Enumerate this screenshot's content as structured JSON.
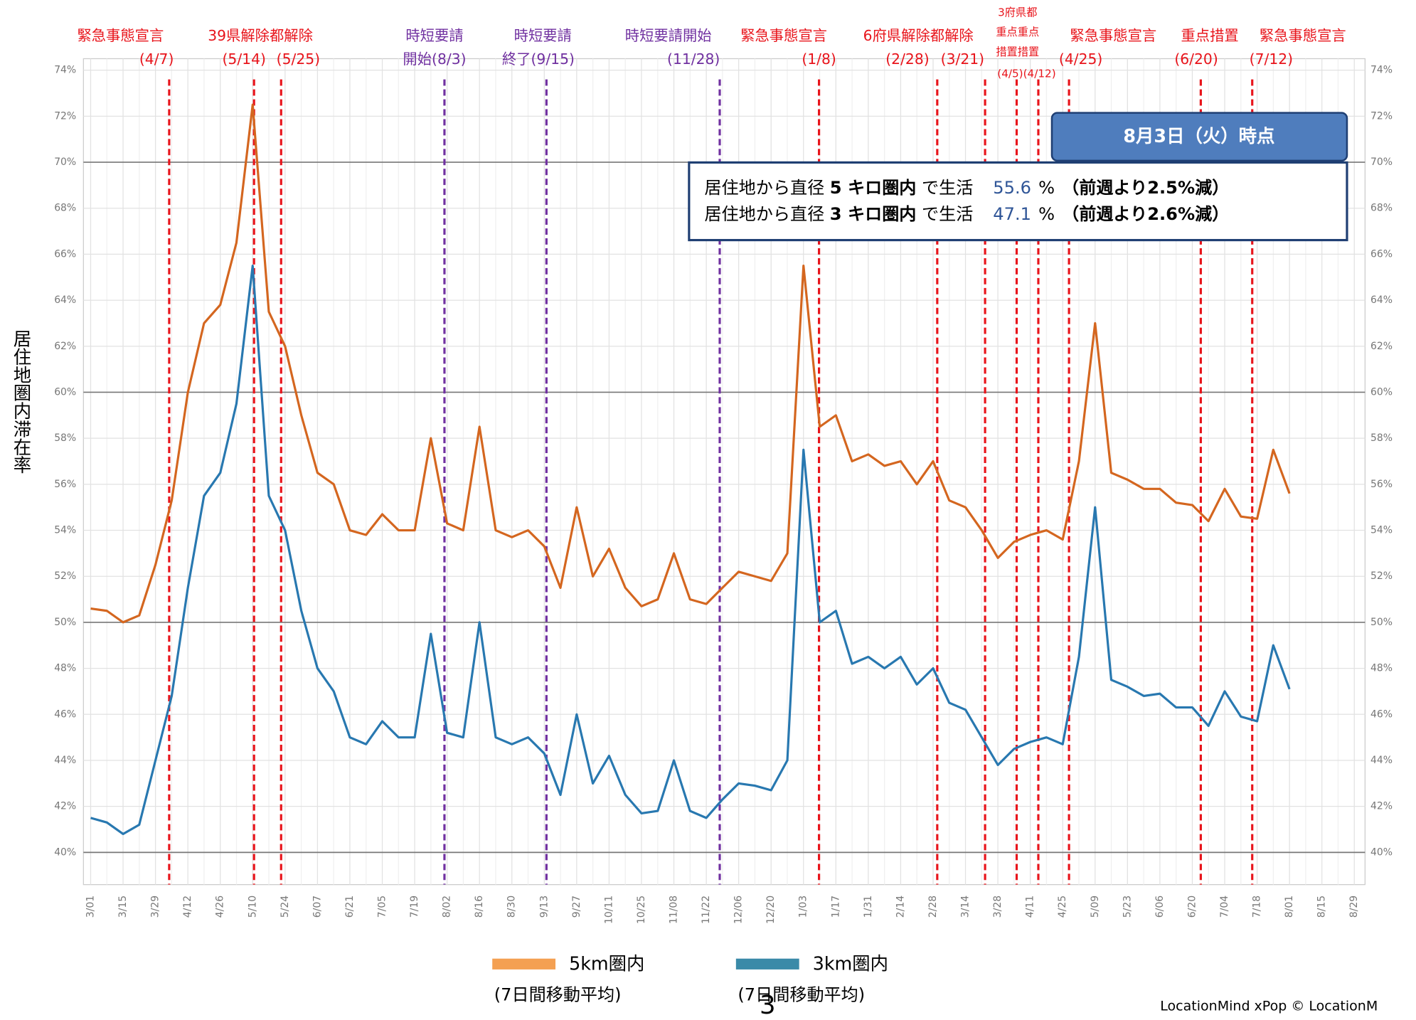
{
  "chart_data": {
    "type": "line",
    "y_axis_label": "居住地圏内滞在率",
    "categories": [
      "3/01",
      null,
      "3/15",
      null,
      "3/29",
      null,
      "4/12",
      null,
      "4/26",
      null,
      "5/10",
      null,
      "5/24",
      null,
      "6/07",
      null,
      "6/21",
      null,
      "7/05",
      null,
      "7/19",
      null,
      "8/02",
      null,
      "8/16",
      null,
      "8/30",
      null,
      "9/13",
      null,
      "9/27",
      null,
      "10/11",
      null,
      "10/25",
      null,
      "11/08",
      null,
      "11/22",
      null,
      "12/06",
      null,
      "12/20",
      null,
      "1/03",
      null,
      "1/17",
      null,
      "1/31",
      null,
      "2/14",
      null,
      "2/28",
      null,
      "3/14",
      null,
      "3/28",
      null,
      "4/11",
      null,
      "4/25",
      null,
      "5/09",
      null,
      "5/23",
      null,
      "6/06",
      null,
      "6/20",
      null,
      "7/04",
      null,
      "7/18",
      null,
      "8/01",
      null,
      "8/15",
      null,
      "8/29"
    ],
    "series": [
      {
        "name": "5km圏内",
        "sublabel": "(7日間移動平均)",
        "color": "#d4661f",
        "legend_color": "#f4a052",
        "values": [
          50.6,
          50.5,
          50.0,
          50.3,
          52.5,
          55.3,
          60.0,
          63.0,
          63.8,
          66.5,
          72.5,
          63.5,
          62.0,
          59.0,
          56.5,
          56.0,
          54.0,
          53.8,
          54.7,
          54.0,
          54.0,
          58.0,
          54.3,
          54.0,
          58.5,
          54.0,
          53.7,
          54.0,
          53.3,
          51.5,
          55.0,
          52.0,
          53.2,
          51.5,
          50.7,
          51.0,
          53.0,
          51.0,
          50.8,
          51.5,
          52.2,
          52.0,
          51.8,
          53.0,
          65.5,
          58.5,
          59.0,
          57.0,
          57.3,
          56.8,
          57.0,
          56.0,
          57.0,
          55.3,
          55.0,
          54.0,
          52.8,
          53.5,
          53.8,
          54.0,
          53.6,
          57.0,
          63.0,
          56.5,
          56.2,
          55.8,
          55.8,
          55.2,
          55.1,
          54.4,
          55.8,
          54.6,
          54.5,
          57.5,
          55.6,
          null,
          null,
          null,
          null
        ]
      },
      {
        "name": "3km圏内",
        "sublabel": "(7日間移動平均)",
        "color": "#2878b0",
        "legend_color": "#3a8aa8",
        "values": [
          41.5,
          41.3,
          40.8,
          41.2,
          44.0,
          46.8,
          51.5,
          55.5,
          56.5,
          59.5,
          65.5,
          55.5,
          54.0,
          50.5,
          48.0,
          47.0,
          45.0,
          44.7,
          45.7,
          45.0,
          45.0,
          49.5,
          45.2,
          45.0,
          50.0,
          45.0,
          44.7,
          45.0,
          44.3,
          42.5,
          46.0,
          43.0,
          44.2,
          42.5,
          41.7,
          41.8,
          44.0,
          41.8,
          41.5,
          42.3,
          43.0,
          42.9,
          42.7,
          44.0,
          57.5,
          50.0,
          50.5,
          48.2,
          48.5,
          48.0,
          48.5,
          47.3,
          48.0,
          46.5,
          46.2,
          45.0,
          43.8,
          44.5,
          44.8,
          45.0,
          44.7,
          48.5,
          55.0,
          47.5,
          47.2,
          46.8,
          46.9,
          46.3,
          46.3,
          45.5,
          47.0,
          45.9,
          45.7,
          49.0,
          47.1,
          null,
          null,
          null,
          null
        ]
      }
    ],
    "ylim": [
      38.6,
      74.5
    ],
    "yticks": [
      {
        "value": 40,
        "label": "40%"
      },
      {
        "value": 42,
        "label": "42%"
      },
      {
        "value": 44,
        "label": "44%"
      },
      {
        "value": 46,
        "label": "46%"
      },
      {
        "value": 48,
        "label": "48%"
      },
      {
        "value": 50,
        "label": "50%"
      },
      {
        "value": 52,
        "label": "52%"
      },
      {
        "value": 54,
        "label": "54%"
      },
      {
        "value": 56,
        "label": "56%"
      },
      {
        "value": 58,
        "label": "58%"
      },
      {
        "value": 60,
        "label": "60%"
      },
      {
        "value": 62,
        "label": "62%"
      },
      {
        "value": 64,
        "label": "64%"
      },
      {
        "value": 66,
        "label": "66%"
      },
      {
        "value": 68,
        "label": "68%"
      },
      {
        "value": 70,
        "label": "70%"
      },
      {
        "value": 72,
        "label": "72%"
      },
      {
        "value": 74,
        "label": "74%"
      }
    ],
    "grid": true,
    "events": [
      {
        "title": "緊急事態宣言",
        "date": "(4/7)"
      },
      {
        "title": "39県解除都解除",
        "date": "(5/14)",
        "date2": "(5/25)"
      },
      {
        "title": "時短要請",
        "date": "開始(8/3)"
      },
      {
        "title": "時短要請",
        "date": "終了(9/15)"
      },
      {
        "title": "時短要請開始",
        "date": "(11/28)"
      },
      {
        "title": "緊急事態宣言",
        "date": "(1/8)"
      },
      {
        "title": "6府県解除都解除",
        "date": "(2/28)",
        "date2": "(3/21)"
      },
      {
        "title": "3府県都",
        "line2": "重点重点",
        "line3": "措置措置",
        "date": "(4/5)(4/12)"
      },
      {
        "title": "緊急事態宣言",
        "date": "(4/25)"
      },
      {
        "title": "重点措置",
        "date": "(6/20)"
      },
      {
        "title": "緊急事態宣言",
        "date": "(7/12)"
      }
    ],
    "info": {
      "header": "8月3日（火）時点",
      "rows": [
        {
          "prefix": "居住地から直径",
          "radius": "5 キロ圏内",
          "suffix": "で生活",
          "value": "55.6",
          "unit": "%",
          "change": "（前週より2.5%減）"
        },
        {
          "prefix": "居住地から直径",
          "radius": "3 キロ圏内",
          "suffix": "で生活",
          "value": "47.1",
          "unit": "%",
          "change": "（前週より2.6%減）"
        }
      ]
    },
    "page_number": "3",
    "credit": "LocationMind xPop © LocationM"
  }
}
